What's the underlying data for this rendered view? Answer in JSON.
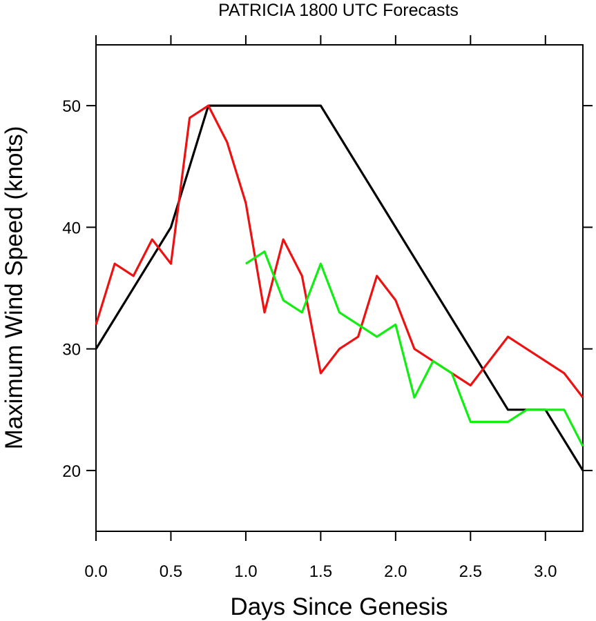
{
  "chart_data": {
    "type": "line",
    "title": "PATRICIA 1800 UTC Forecasts",
    "xlabel": "Days Since Genesis",
    "ylabel": "Maximum Wind Speed (knots)",
    "xlim": [
      0,
      3.25
    ],
    "ylim": [
      15,
      55
    ],
    "x_ticks": [
      "0.0",
      "0.5",
      "1.0",
      "1.5",
      "2.0",
      "2.5",
      "3.0"
    ],
    "x_tick_values": [
      0,
      0.5,
      1.0,
      1.5,
      2.0,
      2.5,
      3.0
    ],
    "y_ticks": [
      "20",
      "30",
      "40",
      "50"
    ],
    "y_tick_values": [
      20,
      30,
      40,
      50
    ],
    "grid": false,
    "legend": "none",
    "series": [
      {
        "color": "#000000",
        "points": [
          [
            0,
            30
          ],
          [
            0.5,
            40
          ],
          [
            0.75,
            50
          ],
          [
            1.5,
            50
          ],
          [
            2.0,
            40
          ],
          [
            2.75,
            25
          ],
          [
            3.0,
            25
          ],
          [
            3.25,
            20
          ]
        ]
      },
      {
        "color": "#ee1111",
        "points": [
          [
            0,
            32
          ],
          [
            0.125,
            37
          ],
          [
            0.25,
            36
          ],
          [
            0.375,
            39
          ],
          [
            0.5,
            37
          ],
          [
            0.625,
            49
          ],
          [
            0.75,
            50
          ],
          [
            0.875,
            47
          ],
          [
            1.0,
            42
          ],
          [
            1.125,
            33
          ],
          [
            1.25,
            39
          ],
          [
            1.375,
            36
          ],
          [
            1.5,
            28
          ],
          [
            1.625,
            30
          ],
          [
            1.75,
            31
          ],
          [
            1.875,
            36
          ],
          [
            2.0,
            34
          ],
          [
            2.125,
            30
          ],
          [
            2.25,
            29
          ],
          [
            2.375,
            28
          ],
          [
            2.5,
            27
          ],
          [
            2.75,
            31
          ],
          [
            3.125,
            28
          ],
          [
            3.25,
            26
          ]
        ]
      },
      {
        "color": "#11ee11",
        "points": [
          [
            1.0,
            37
          ],
          [
            1.125,
            38
          ],
          [
            1.25,
            34
          ],
          [
            1.375,
            33
          ],
          [
            1.5,
            37
          ],
          [
            1.625,
            33
          ],
          [
            1.75,
            32
          ],
          [
            1.875,
            31
          ],
          [
            2.0,
            32
          ],
          [
            2.125,
            26
          ],
          [
            2.25,
            29
          ],
          [
            2.375,
            28
          ],
          [
            2.5,
            24
          ],
          [
            2.75,
            24
          ],
          [
            2.875,
            25
          ],
          [
            3.0,
            25
          ],
          [
            3.125,
            25
          ],
          [
            3.25,
            22
          ]
        ]
      }
    ]
  }
}
